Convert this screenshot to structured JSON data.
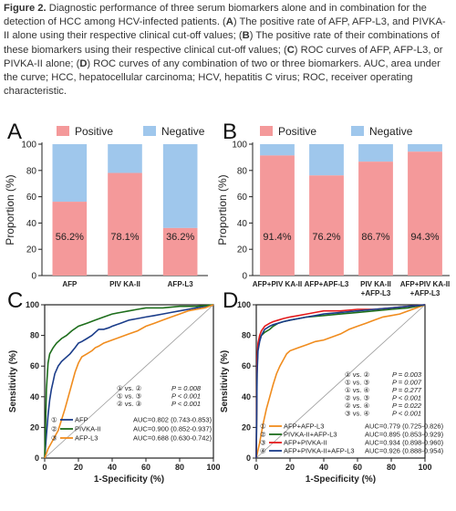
{
  "caption": {
    "figure_label": "Figure 2.",
    "s0": " Diagnostic performance of three serum biomarkers alone and in combination for the detection of HCC among HCV-infected patients. (",
    "A": "A",
    "s1": ") The positive rate of AFP, AFP-L3, and PIVKA-II alone using their respective clinical cut-off values; (",
    "B": "B",
    "s2": ") The positive rate of their combinations of these biomarkers using their respective clinical cut-off values; (",
    "C": "C",
    "s3": ") ROC curves of AFP, AFP-L3, or PIVKA-II alone; (",
    "D": "D",
    "s4": ") ROC curves of any combination of two or three biomarkers. AUC, area under the curve; HCC, hepatocellular carcinoma; HCV, hepatitis C virus; ROC, receiver operating characteristic."
  },
  "colors": {
    "positive": "#f4999a",
    "negative": "#9fc7ec",
    "green": "#1e6e1c",
    "navy": "#1b3d8a",
    "orange": "#f08c1e",
    "red": "#e41a1c"
  },
  "chart_data": [
    {
      "type": "bar",
      "panel": "A",
      "stacked": true,
      "legend": [
        "Positive",
        "Negative"
      ],
      "legend_position": "top",
      "ylabel": "Proportion (%)",
      "ylim": [
        0,
        100
      ],
      "yticks": [
        "0",
        "20",
        "40",
        "60",
        "80",
        "100"
      ],
      "categories": [
        "AFP",
        "PIV KA-II",
        "AFP-L3"
      ],
      "series": [
        {
          "name": "Positive",
          "values": [
            56.2,
            78.1,
            36.2
          ]
        },
        {
          "name": "Negative",
          "values": [
            43.8,
            21.9,
            63.8
          ]
        }
      ],
      "labels": [
        "56.2%",
        "78.1%",
        "36.2%"
      ]
    },
    {
      "type": "bar",
      "panel": "B",
      "stacked": true,
      "legend": [
        "Positive",
        "Negative"
      ],
      "legend_position": "top",
      "ylabel": "Proportion (%)",
      "ylim": [
        0,
        100
      ],
      "yticks": [
        "0",
        "20",
        "40",
        "60",
        "80",
        "100"
      ],
      "categories": [
        [
          "AFP+PIV KA-II"
        ],
        [
          "AFP+APF-L3"
        ],
        [
          "PIV KA-II",
          "+AFP-L3"
        ],
        [
          "AFP+PIV KA-II",
          "+AFP-L3"
        ]
      ],
      "series": [
        {
          "name": "Positive",
          "values": [
            91.4,
            76.2,
            86.7,
            94.3
          ]
        },
        {
          "name": "Negative",
          "values": [
            8.6,
            23.8,
            13.3,
            5.7
          ]
        }
      ],
      "labels": [
        "91.4%",
        "76.2%",
        "86.7%",
        "94.3%"
      ]
    },
    {
      "type": "line",
      "panel": "C",
      "xlabel": "1-Specificity (%)",
      "ylabel": "Sensitivity (%)",
      "xlim": [
        0,
        100
      ],
      "ylim": [
        0,
        100
      ],
      "xticks": [
        "0",
        "20",
        "40",
        "60",
        "80",
        "100"
      ],
      "yticks": [
        "0",
        "20",
        "40",
        "60",
        "80",
        "100"
      ],
      "series": [
        {
          "name": "AFP",
          "marker": "①",
          "auc": "AUC=0.802 (0.743-0.853)",
          "color": "#1b3d8a",
          "x": [
            0,
            1,
            2,
            3,
            4,
            5,
            6,
            8,
            10,
            12,
            15,
            18,
            20,
            22,
            25,
            28,
            30,
            32,
            35,
            38,
            40,
            45,
            50,
            55,
            60,
            65,
            70,
            75,
            80,
            85,
            90,
            95,
            100
          ],
          "y": [
            0,
            15,
            28,
            38,
            45,
            50,
            55,
            60,
            63,
            65,
            68,
            72,
            75,
            76,
            78,
            80,
            82,
            84,
            84,
            85,
            86,
            88,
            90,
            91,
            92,
            93,
            94,
            95,
            96,
            97,
            98,
            99,
            100
          ]
        },
        {
          "name": "PIVKA-II",
          "marker": "②",
          "auc": "AUC=0.900 (0.852-0.937)",
          "color": "#1e6e1c",
          "x": [
            0,
            0.5,
            1,
            2,
            3,
            5,
            7,
            10,
            13,
            16,
            20,
            25,
            30,
            35,
            40,
            45,
            50,
            55,
            60,
            70,
            80,
            90,
            100
          ],
          "y": [
            0,
            20,
            45,
            62,
            68,
            72,
            75,
            78,
            80,
            83,
            86,
            88,
            90,
            92,
            94,
            95,
            96,
            97,
            98,
            98,
            99,
            99,
            100
          ]
        },
        {
          "name": "AFP-L3",
          "marker": "③",
          "auc": "AUC=0.688 (0.630-0.742)",
          "color": "#f08c1e",
          "x": [
            0,
            2,
            4,
            6,
            8,
            10,
            12,
            14,
            16,
            18,
            20,
            22,
            25,
            28,
            30,
            32,
            35,
            40,
            45,
            50,
            55,
            60,
            65,
            70,
            75,
            80,
            85,
            90,
            95,
            100
          ],
          "y": [
            0,
            6,
            10,
            14,
            18,
            25,
            32,
            40,
            48,
            56,
            62,
            66,
            68,
            70,
            72,
            73,
            75,
            77,
            79,
            81,
            83,
            86,
            88,
            90,
            92,
            94,
            96,
            97,
            98,
            100
          ]
        }
      ],
      "comparisons": [
        {
          "label": "① vs. ②",
          "p": "P = 0.008"
        },
        {
          "label": "① vs. ③",
          "p": "P < 0.001"
        },
        {
          "label": "② vs. ③",
          "p": "P < 0.001"
        }
      ]
    },
    {
      "type": "line",
      "panel": "D",
      "xlabel": "1-Specificity (%)",
      "ylabel": "Sensitivity (%)",
      "xlim": [
        0,
        100
      ],
      "ylim": [
        0,
        100
      ],
      "xticks": [
        "0",
        "20",
        "40",
        "60",
        "80",
        "100"
      ],
      "yticks": [
        "0",
        "20",
        "40",
        "60",
        "80",
        "100"
      ],
      "series": [
        {
          "name": "AFP+AFP-L3",
          "marker": "①",
          "auc": "AUC=0.779 (0.725-0.826)",
          "color": "#f08c1e",
          "x": [
            0,
            2,
            4,
            6,
            8,
            10,
            12,
            14,
            16,
            18,
            20,
            25,
            30,
            35,
            40,
            45,
            50,
            55,
            60,
            65,
            70,
            75,
            80,
            85,
            90,
            95,
            100
          ],
          "y": [
            0,
            10,
            22,
            32,
            40,
            48,
            55,
            60,
            64,
            68,
            70,
            72,
            74,
            76,
            77,
            79,
            81,
            84,
            86,
            88,
            90,
            92,
            93,
            94,
            96,
            98,
            100
          ]
        },
        {
          "name": "PIVKA-II+AFP-L3",
          "marker": "②",
          "auc": "AUC=0.895 (0.853-0.929)",
          "color": "#1e6e1c",
          "x": [
            0,
            0.5,
            1,
            2,
            3,
            5,
            8,
            10,
            13,
            16,
            20,
            25,
            30,
            40,
            50,
            60,
            70,
            80,
            90,
            100
          ],
          "y": [
            0,
            60,
            72,
            78,
            80,
            82,
            84,
            86,
            88,
            89,
            90,
            91,
            92,
            93,
            94,
            95,
            96,
            97,
            98,
            100
          ]
        },
        {
          "name": "AFP+PIVKA-II",
          "marker": "③",
          "auc": "AUC=0.934 (0.898-0.960)",
          "color": "#e41a1c",
          "x": [
            0,
            0.5,
            1,
            2,
            3,
            5,
            8,
            10,
            13,
            16,
            20,
            25,
            30,
            35,
            40,
            50,
            60,
            70,
            80,
            90,
            100
          ],
          "y": [
            0,
            65,
            75,
            80,
            83,
            86,
            88,
            89,
            90,
            91,
            92,
            93,
            94,
            95,
            96,
            96,
            97,
            97,
            98,
            99,
            100
          ]
        },
        {
          "name": "AFP+PIVKA-II+AFP-L3",
          "marker": "④",
          "auc": "AUC=0.926 (0.888-0.954)",
          "color": "#1b3d8a",
          "x": [
            0,
            0.5,
            1,
            2,
            3,
            5,
            8,
            10,
            13,
            16,
            20,
            25,
            30,
            35,
            40,
            50,
            60,
            70,
            80,
            90,
            100
          ],
          "y": [
            0,
            55,
            70,
            76,
            80,
            84,
            86,
            87,
            88,
            89,
            90,
            91,
            92,
            93,
            94,
            95,
            96,
            97,
            98,
            99,
            100
          ]
        }
      ],
      "comparisons": [
        {
          "label": "① vs. ②",
          "p": "P = 0.003"
        },
        {
          "label": "① vs. ③",
          "p": "P = 0.007"
        },
        {
          "label": "① vs. ④",
          "p": "P = 0.277"
        },
        {
          "label": "② vs. ③",
          "p": "P < 0.001"
        },
        {
          "label": "② vs. ④",
          "p": "P = 0.022"
        },
        {
          "label": "③ vs. ④",
          "p": "P < 0.001"
        }
      ]
    }
  ]
}
